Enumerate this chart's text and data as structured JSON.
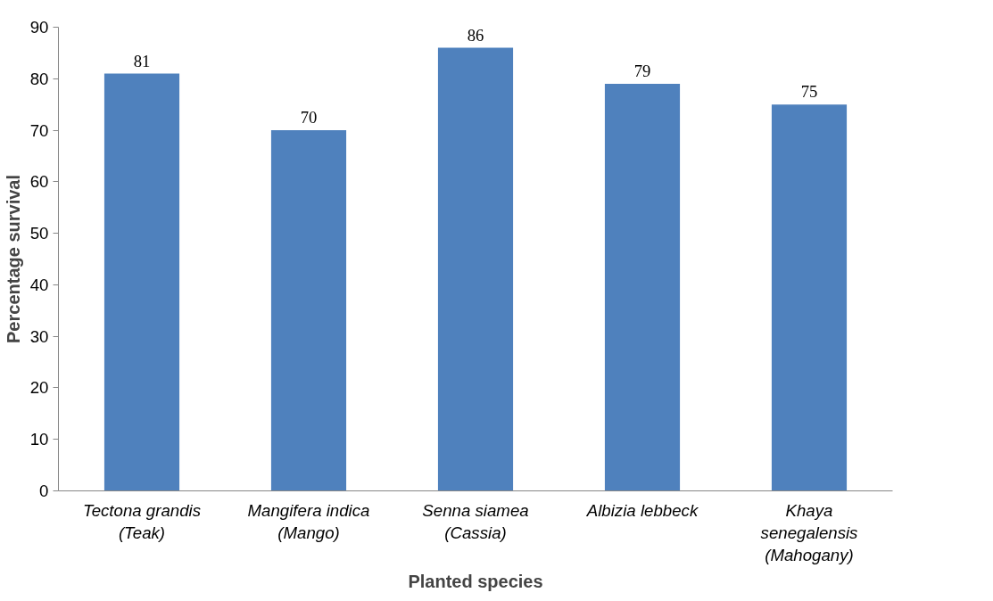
{
  "chart_data": {
    "type": "bar",
    "xlabel": "Planted species",
    "ylabel": "Percentage survival",
    "categories": [
      "Tectona grandis\n(Teak)",
      "Mangifera indica\n(Mango)",
      "Senna siamea\n(Cassia)",
      "Albizia lebbeck",
      "Khaya\nsenegalensis\n(Mahogany)"
    ],
    "values": [
      81,
      70,
      86,
      79,
      75
    ],
    "color": "#4f81bd",
    "ylim": [
      0,
      90
    ],
    "yticks": [
      0,
      10,
      20,
      30,
      40,
      50,
      60,
      70,
      80,
      90
    ],
    "grid": false,
    "data_labels": true
  }
}
